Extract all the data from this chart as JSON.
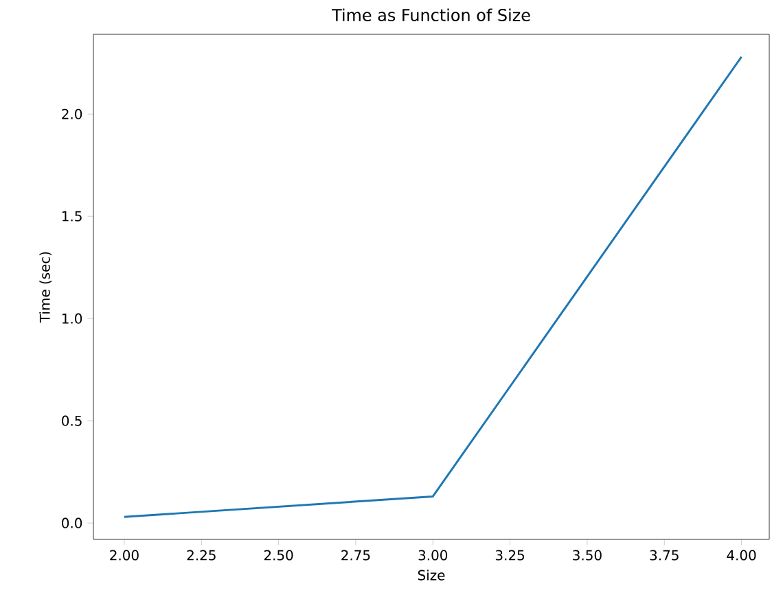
{
  "chart_data": {
    "type": "line",
    "title": "Time as Function of Size",
    "xlabel": "Size",
    "ylabel": "Time (sec)",
    "x": [
      2,
      3,
      4
    ],
    "series": [
      {
        "color": "#1f77b4",
        "values": [
          0.03,
          0.13,
          2.28
        ]
      }
    ],
    "xlim": [
      1.9,
      4.09
    ],
    "ylim": [
      -0.08,
      2.39
    ],
    "xticks": [
      {
        "value": 2,
        "label": "2.00"
      },
      {
        "value": 2.25,
        "label": "2.25"
      },
      {
        "value": 2.5,
        "label": "2.50"
      },
      {
        "value": 2.75,
        "label": "2.75"
      },
      {
        "value": 3,
        "label": "3.00"
      },
      {
        "value": 3.25,
        "label": "3.25"
      },
      {
        "value": 3.5,
        "label": "3.50"
      },
      {
        "value": 3.75,
        "label": "3.75"
      },
      {
        "value": 4,
        "label": "4.00"
      }
    ],
    "yticks": [
      {
        "value": 0,
        "label": "0.0"
      },
      {
        "value": 0.5,
        "label": "0.5"
      },
      {
        "value": 1,
        "label": "1.0"
      },
      {
        "value": 1.5,
        "label": "1.5"
      },
      {
        "value": 2,
        "label": "2.0"
      }
    ],
    "marker": "none",
    "line_style": "solid"
  }
}
